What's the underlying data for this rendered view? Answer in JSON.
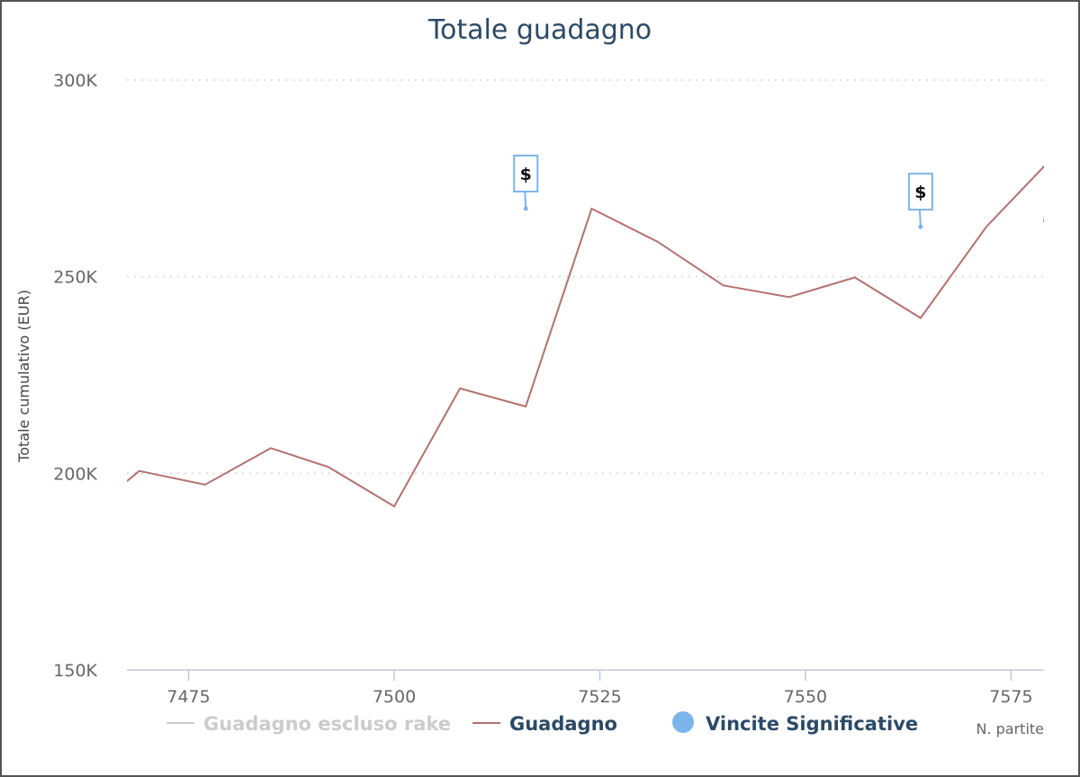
{
  "chart_data": {
    "type": "line",
    "title": "Totale guadagno",
    "xlabel": "N. partite",
    "ylabel": "Totale cumulativo (EUR)",
    "xlim": [
      7467.5,
      7579
    ],
    "ylim": [
      150000,
      300000
    ],
    "x_ticks": [
      7475,
      7500,
      7525,
      7550,
      7575
    ],
    "y_ticks": [
      {
        "value": 150000,
        "label": "150K"
      },
      {
        "value": 200000,
        "label": "200K"
      },
      {
        "value": 250000,
        "label": "250K"
      },
      {
        "value": 300000,
        "label": "300K"
      }
    ],
    "grid": true,
    "legend_position": "bottom",
    "series": [
      {
        "name": "Guadagno escluso rake",
        "color": "#cccccc",
        "hidden": true,
        "x": [],
        "y": []
      },
      {
        "name": "Guadagno",
        "color": "#b5716e",
        "hidden": false,
        "x": [
          7467.5,
          7469,
          7477,
          7485,
          7492,
          7500,
          7508,
          7516,
          7524,
          7532,
          7540,
          7548,
          7556,
          7564,
          7572,
          7580,
          7579
        ],
        "y": [
          198000,
          200600,
          197100,
          206400,
          201600,
          191600,
          221600,
          217000,
          267300,
          258900,
          247800,
          244800,
          249800,
          239500,
          262700,
          280200,
          263800
        ]
      },
      {
        "name": "Vincite Significative",
        "color": "#7cb5ec",
        "hidden": false,
        "markers": [
          {
            "x": 7516,
            "y": 267300,
            "label": "$"
          },
          {
            "x": 7564,
            "y": 262700,
            "label": "$"
          }
        ]
      }
    ]
  }
}
